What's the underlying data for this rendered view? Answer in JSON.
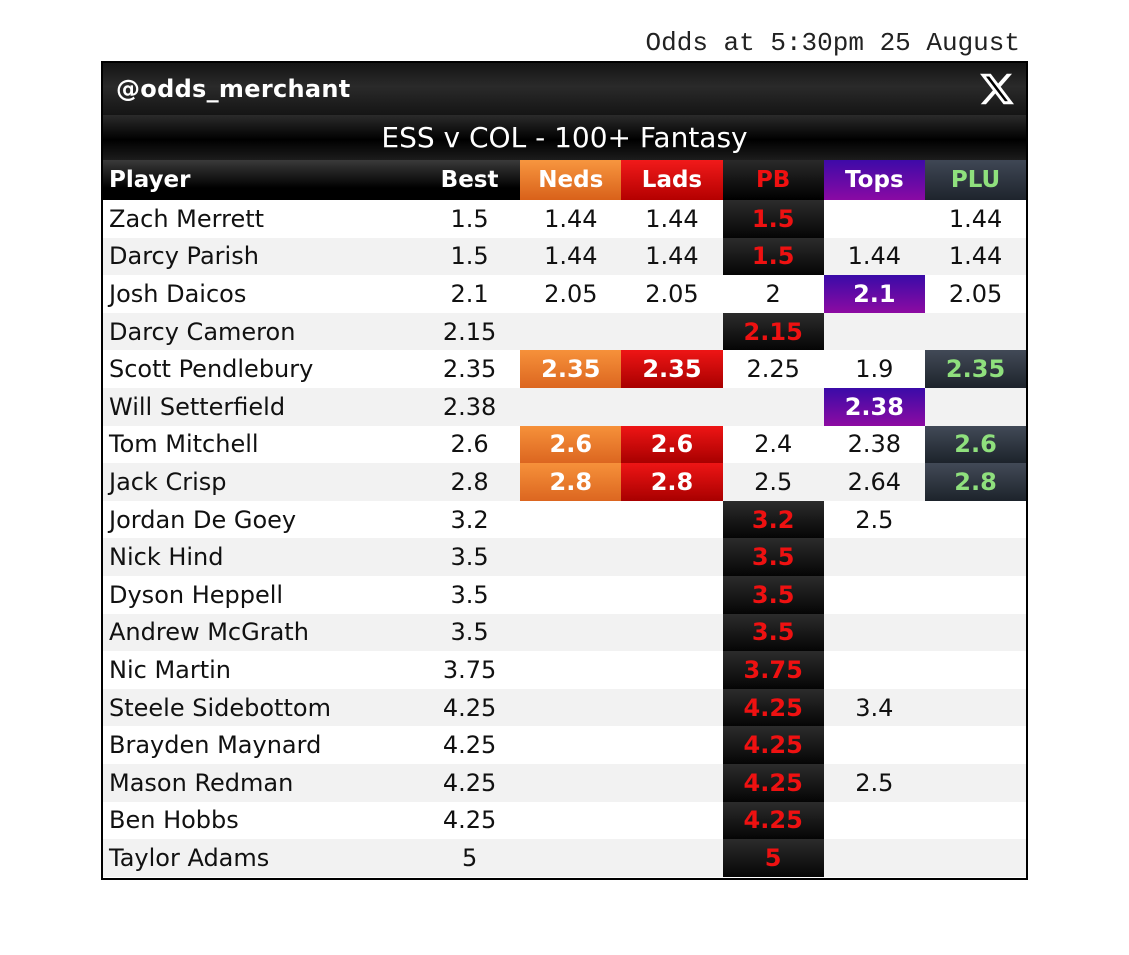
{
  "timestamp": "Odds at 5:30pm 25 August",
  "handle": "@odds_merchant",
  "title": "ESS v COL - 100+ Fantasy",
  "columns": [
    "Player",
    "Best",
    "Neds",
    "Lads",
    "PB",
    "Tops",
    "PLU"
  ],
  "colors": {
    "neds": "#E8742A",
    "lads": "#D10000",
    "pb": "#EE1111",
    "tops": "#5A0BA6",
    "plu": "#8FE07D",
    "header": "#000000"
  },
  "rows": [
    {
      "player": "Zach Merrett",
      "best": "1.5",
      "neds": "1.44",
      "lads": "1.44",
      "pb": "1.5",
      "tops": "",
      "plu": "1.44",
      "hl": [
        "pb"
      ]
    },
    {
      "player": "Darcy Parish",
      "best": "1.5",
      "neds": "1.44",
      "lads": "1.44",
      "pb": "1.5",
      "tops": "1.44",
      "plu": "1.44",
      "hl": [
        "pb"
      ]
    },
    {
      "player": "Josh Daicos",
      "best": "2.1",
      "neds": "2.05",
      "lads": "2.05",
      "pb": "2",
      "tops": "2.1",
      "plu": "2.05",
      "hl": [
        "tops"
      ]
    },
    {
      "player": "Darcy Cameron",
      "best": "2.15",
      "neds": "",
      "lads": "",
      "pb": "2.15",
      "tops": "",
      "plu": "",
      "hl": [
        "pb"
      ]
    },
    {
      "player": "Scott Pendlebury",
      "best": "2.35",
      "neds": "2.35",
      "lads": "2.35",
      "pb": "2.25",
      "tops": "1.9",
      "plu": "2.35",
      "hl": [
        "neds",
        "lads",
        "plu"
      ]
    },
    {
      "player": "Will Setterfield",
      "best": "2.38",
      "neds": "",
      "lads": "",
      "pb": "",
      "tops": "2.38",
      "plu": "",
      "hl": [
        "tops"
      ]
    },
    {
      "player": "Tom Mitchell",
      "best": "2.6",
      "neds": "2.6",
      "lads": "2.6",
      "pb": "2.4",
      "tops": "2.38",
      "plu": "2.6",
      "hl": [
        "neds",
        "lads",
        "plu"
      ]
    },
    {
      "player": "Jack Crisp",
      "best": "2.8",
      "neds": "2.8",
      "lads": "2.8",
      "pb": "2.5",
      "tops": "2.64",
      "plu": "2.8",
      "hl": [
        "neds",
        "lads",
        "plu"
      ]
    },
    {
      "player": "Jordan De Goey",
      "best": "3.2",
      "neds": "",
      "lads": "",
      "pb": "3.2",
      "tops": "2.5",
      "plu": "",
      "hl": [
        "pb"
      ]
    },
    {
      "player": "Nick Hind",
      "best": "3.5",
      "neds": "",
      "lads": "",
      "pb": "3.5",
      "tops": "",
      "plu": "",
      "hl": [
        "pb"
      ]
    },
    {
      "player": "Dyson Heppell",
      "best": "3.5",
      "neds": "",
      "lads": "",
      "pb": "3.5",
      "tops": "",
      "plu": "",
      "hl": [
        "pb"
      ]
    },
    {
      "player": "Andrew McGrath",
      "best": "3.5",
      "neds": "",
      "lads": "",
      "pb": "3.5",
      "tops": "",
      "plu": "",
      "hl": [
        "pb"
      ]
    },
    {
      "player": "Nic Martin",
      "best": "3.75",
      "neds": "",
      "lads": "",
      "pb": "3.75",
      "tops": "",
      "plu": "",
      "hl": [
        "pb"
      ]
    },
    {
      "player": "Steele Sidebottom",
      "best": "4.25",
      "neds": "",
      "lads": "",
      "pb": "4.25",
      "tops": "3.4",
      "plu": "",
      "hl": [
        "pb"
      ]
    },
    {
      "player": "Brayden Maynard",
      "best": "4.25",
      "neds": "",
      "lads": "",
      "pb": "4.25",
      "tops": "",
      "plu": "",
      "hl": [
        "pb"
      ]
    },
    {
      "player": "Mason Redman",
      "best": "4.25",
      "neds": "",
      "lads": "",
      "pb": "4.25",
      "tops": "2.5",
      "plu": "",
      "hl": [
        "pb"
      ]
    },
    {
      "player": "Ben Hobbs",
      "best": "4.25",
      "neds": "",
      "lads": "",
      "pb": "4.25",
      "tops": "",
      "plu": "",
      "hl": [
        "pb"
      ]
    },
    {
      "player": "Taylor Adams",
      "best": "5",
      "neds": "",
      "lads": "",
      "pb": "5",
      "tops": "",
      "plu": "",
      "hl": [
        "pb"
      ]
    }
  ]
}
